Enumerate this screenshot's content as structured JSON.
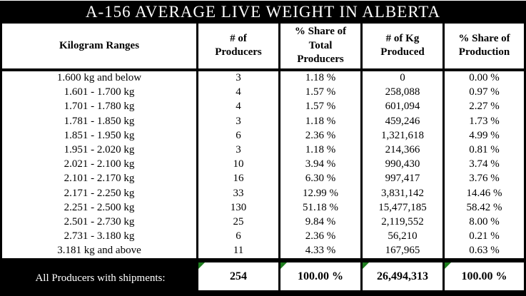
{
  "title": "A-156 AVERAGE LIVE WEIGHT IN ALBERTA",
  "colors": {
    "title_bar_bg": "#000000",
    "title_text": "#ffffff",
    "border": "#000000",
    "footer_bg": "#000000",
    "error_marker_green": "#1e7e1e"
  },
  "icons": {
    "footer_cell_marker": "excel-error-triangle-icon"
  },
  "table": {
    "columns": [
      "Kilogram Ranges",
      "# of Producers",
      "% Share of Total Producers",
      "# of Kg Produced",
      "% Share of Production"
    ],
    "rows": [
      {
        "range": "1.600 kg and below",
        "producers": "3",
        "share_producers": "1.18 %",
        "kg_produced": "0",
        "share_production": "0.00 %"
      },
      {
        "range": "1.601 - 1.700 kg",
        "producers": "4",
        "share_producers": "1.57 %",
        "kg_produced": "258,088",
        "share_production": "0.97 %"
      },
      {
        "range": "1.701 - 1.780 kg",
        "producers": "4",
        "share_producers": "1.57 %",
        "kg_produced": "601,094",
        "share_production": "2.27 %"
      },
      {
        "range": "1.781 - 1.850 kg",
        "producers": "3",
        "share_producers": "1.18 %",
        "kg_produced": "459,246",
        "share_production": "1.73 %"
      },
      {
        "range": "1.851 - 1.950 kg",
        "producers": "6",
        "share_producers": "2.36 %",
        "kg_produced": "1,321,618",
        "share_production": "4.99 %"
      },
      {
        "range": "1.951 - 2.020 kg",
        "producers": "3",
        "share_producers": "1.18 %",
        "kg_produced": "214,366",
        "share_production": "0.81 %"
      },
      {
        "range": "2.021 - 2.100 kg",
        "producers": "10",
        "share_producers": "3.94 %",
        "kg_produced": "990,430",
        "share_production": "3.74 %"
      },
      {
        "range": "2.101 - 2.170 kg",
        "producers": "16",
        "share_producers": "6.30 %",
        "kg_produced": "997,417",
        "share_production": "3.76 %"
      },
      {
        "range": "2.171 - 2.250 kg",
        "producers": "33",
        "share_producers": "12.99 %",
        "kg_produced": "3,831,142",
        "share_production": "14.46 %"
      },
      {
        "range": "2.251 - 2.500 kg",
        "producers": "130",
        "share_producers": "51.18 %",
        "kg_produced": "15,477,185",
        "share_production": "58.42 %"
      },
      {
        "range": "2.501 - 2.730 kg",
        "producers": "25",
        "share_producers": "9.84 %",
        "kg_produced": "2,119,552",
        "share_production": "8.00 %"
      },
      {
        "range": "2.731 - 3.180 kg",
        "producers": "6",
        "share_producers": "2.36 %",
        "kg_produced": "56,210",
        "share_production": "0.21 %"
      },
      {
        "range": "3.181 kg and above",
        "producers": "11",
        "share_producers": "4.33 %",
        "kg_produced": "167,965",
        "share_production": "0.63 %"
      }
    ],
    "footer": {
      "label": "All Producers with shipments:",
      "producers": "254",
      "share_producers": "100.00 %",
      "kg_produced": "26,494,313",
      "share_production": "100.00 %"
    }
  }
}
